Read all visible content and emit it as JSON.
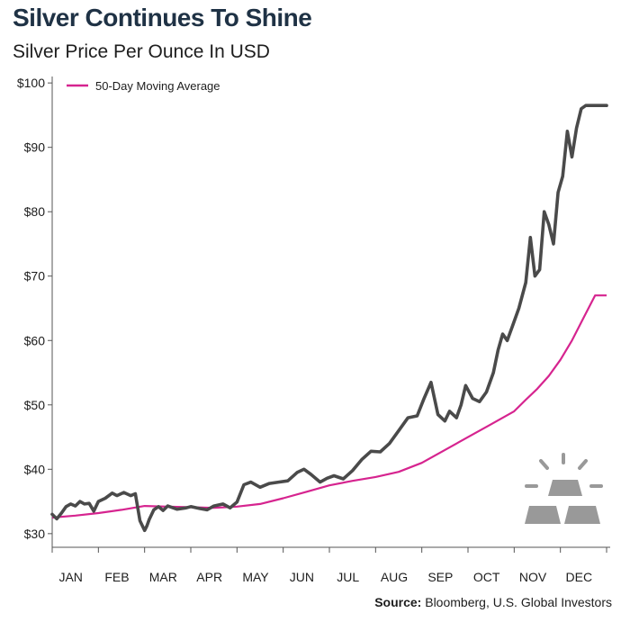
{
  "title": "Silver Continues To Shine",
  "subtitle": "Silver Price Per Ounce In USD",
  "source_label": "Source:",
  "source_text": "Bloomberg, U.S. Global Investors",
  "colors": {
    "price": "#4a4a4a",
    "moving_average": "#d6248f",
    "title": "#1f3245",
    "icon": "#999999"
  },
  "icon": "silver-bars-icon",
  "chart_data": {
    "type": "line",
    "title": "Silver Continues To Shine",
    "subtitle": "Silver Price Per Ounce In USD",
    "xlabel": "",
    "ylabel": "",
    "x_tick_labels": [
      "JAN",
      "FEB",
      "MAR",
      "APR",
      "MAY",
      "JUN",
      "JUL",
      "AUG",
      "SEP",
      "OCT",
      "NOV",
      "DEC"
    ],
    "y_tick_labels": [
      "$30",
      "$40",
      "$50",
      "$60",
      "$70",
      "$80",
      "$90",
      "$100"
    ],
    "y_ticks": [
      30,
      40,
      50,
      60,
      70,
      80,
      90,
      100
    ],
    "ylim": [
      29,
      101
    ],
    "x_unit": "month index (0 = start of JAN, 12 = end of DEC)",
    "xlim": [
      0,
      12
    ],
    "grid": false,
    "legend_position": "top-left",
    "series": [
      {
        "name": "",
        "x": [
          0.0,
          0.1,
          0.2,
          0.3,
          0.4,
          0.5,
          0.6,
          0.7,
          0.8,
          0.9,
          1.0,
          1.15,
          1.3,
          1.4,
          1.55,
          1.7,
          1.8,
          1.9,
          2.0,
          2.05,
          2.1,
          2.2,
          2.3,
          2.4,
          2.5,
          2.7,
          2.9,
          3.0,
          3.2,
          3.35,
          3.5,
          3.7,
          3.85,
          4.0,
          4.15,
          4.3,
          4.5,
          4.7,
          4.9,
          5.1,
          5.3,
          5.45,
          5.6,
          5.8,
          5.95,
          6.1,
          6.3,
          6.5,
          6.7,
          6.9,
          7.1,
          7.3,
          7.5,
          7.7,
          7.9,
          8.05,
          8.2,
          8.35,
          8.5,
          8.6,
          8.75,
          8.85,
          8.95,
          9.1,
          9.25,
          9.4,
          9.55,
          9.65,
          9.75,
          9.85,
          9.95,
          10.1,
          10.25,
          10.35,
          10.45,
          10.55,
          10.65,
          10.75,
          10.85,
          10.95,
          11.05,
          11.15,
          11.25,
          11.35,
          11.45,
          11.55,
          11.65,
          11.75,
          11.85,
          11.95,
          12.0
        ],
        "values": [
          33.0,
          32.3,
          33.2,
          34.2,
          34.6,
          34.3,
          35.0,
          34.6,
          34.7,
          33.5,
          35.0,
          35.5,
          36.3,
          35.9,
          36.4,
          35.9,
          36.2,
          32.0,
          30.5,
          31.2,
          32.2,
          33.7,
          34.2,
          33.6,
          34.3,
          33.8,
          34.0,
          34.2,
          33.9,
          33.7,
          34.3,
          34.6,
          34.0,
          34.9,
          37.6,
          38.0,
          37.2,
          37.8,
          38.0,
          38.2,
          39.5,
          40.0,
          39.2,
          38.0,
          38.6,
          39.0,
          38.5,
          39.8,
          41.5,
          42.8,
          42.7,
          44.0,
          46.0,
          48.0,
          48.3,
          51.0,
          53.5,
          48.5,
          47.5,
          49.0,
          48.0,
          50.0,
          53.0,
          51.0,
          50.5,
          52.0,
          55.0,
          58.5,
          61.0,
          60.0,
          62.0,
          65.0,
          69.0,
          76.0,
          70.0,
          71.0,
          80.0,
          78.0,
          75.0,
          83.0,
          85.5,
          92.5,
          88.5,
          93.0,
          96.0,
          96.5,
          96.5,
          96.5,
          96.5,
          96.5,
          96.5
        ]
      },
      {
        "name": "50-Day Moving Average",
        "x": [
          0.0,
          0.5,
          1.0,
          1.5,
          2.0,
          2.5,
          3.0,
          3.5,
          4.0,
          4.5,
          5.0,
          5.5,
          6.0,
          6.5,
          7.0,
          7.5,
          8.0,
          8.5,
          9.0,
          9.5,
          10.0,
          10.25,
          10.5,
          10.75,
          11.0,
          11.25,
          11.5,
          11.75,
          12.0
        ],
        "values": [
          32.5,
          32.8,
          33.2,
          33.7,
          34.3,
          34.2,
          34.1,
          34.0,
          34.2,
          34.6,
          35.5,
          36.5,
          37.5,
          38.2,
          38.8,
          39.6,
          41.0,
          43.0,
          45.0,
          47.0,
          49.0,
          50.8,
          52.5,
          54.5,
          57.0,
          60.0,
          63.5,
          67.0,
          67.0
        ]
      }
    ]
  }
}
